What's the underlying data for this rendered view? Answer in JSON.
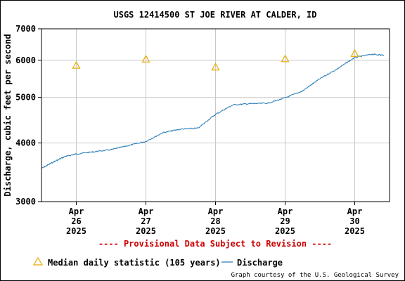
{
  "chart_data": {
    "type": "line",
    "title": "USGS 12414500 ST JOE RIVER AT CALDER, ID",
    "ylabel": "Discharge, cubic feet per second",
    "xlabel": "",
    "y_scale": "log",
    "ylim": [
      3000,
      7000
    ],
    "y_ticks": [
      3000,
      4000,
      5000,
      6000,
      7000
    ],
    "y_tick_labels": [
      "3000",
      "4000",
      "5000",
      "6000",
      "7000"
    ],
    "xlim": [
      "2025-04-25 12:00",
      "2025-04-30 12:00"
    ],
    "x_ticks": [
      {
        "date": "2025-04-26 00:00",
        "label": [
          "Apr",
          "26",
          "2025"
        ]
      },
      {
        "date": "2025-04-27 00:00",
        "label": [
          "Apr",
          "27",
          "2025"
        ]
      },
      {
        "date": "2025-04-28 00:00",
        "label": [
          "Apr",
          "28",
          "2025"
        ]
      },
      {
        "date": "2025-04-29 00:00",
        "label": [
          "Apr",
          "29",
          "2025"
        ]
      },
      {
        "date": "2025-04-30 00:00",
        "label": [
          "Apr",
          "30",
          "2025"
        ]
      }
    ],
    "grid": true,
    "series": [
      {
        "name": "Discharge",
        "color": "#1f77b4",
        "style": "line",
        "points": [
          [
            "2025-04-25 12:00",
            3530
          ],
          [
            "2025-04-25 16:00",
            3640
          ],
          [
            "2025-04-25 20:00",
            3740
          ],
          [
            "2025-04-26 00:00",
            3790
          ],
          [
            "2025-04-26 06:00",
            3830
          ],
          [
            "2025-04-26 12:00",
            3870
          ],
          [
            "2025-04-26 18:00",
            3950
          ],
          [
            "2025-04-27 00:00",
            4030
          ],
          [
            "2025-04-27 06:00",
            4210
          ],
          [
            "2025-04-27 12:00",
            4280
          ],
          [
            "2025-04-27 18:00",
            4300
          ],
          [
            "2025-04-28 00:00",
            4600
          ],
          [
            "2025-04-28 06:00",
            4820
          ],
          [
            "2025-04-28 12:00",
            4850
          ],
          [
            "2025-04-28 18:00",
            4860
          ],
          [
            "2025-04-29 00:00",
            4990
          ],
          [
            "2025-04-29 06:00",
            5160
          ],
          [
            "2025-04-29 12:00",
            5480
          ],
          [
            "2025-04-29 18:00",
            5750
          ],
          [
            "2025-04-30 00:00",
            6080
          ],
          [
            "2025-04-30 06:00",
            6180
          ],
          [
            "2025-04-30 10:00",
            6150
          ]
        ]
      },
      {
        "name": "Median daily statistic (105 years)",
        "color": "#e6a800",
        "style": "triangle",
        "points": [
          [
            "2025-04-26 00:00",
            5850
          ],
          [
            "2025-04-27 00:00",
            6030
          ],
          [
            "2025-04-28 00:00",
            5800
          ],
          [
            "2025-04-29 00:00",
            6040
          ],
          [
            "2025-04-30 00:00",
            6200
          ]
        ]
      }
    ]
  },
  "legend": {
    "median_label": "Median daily statistic (105 years)",
    "discharge_label": "Discharge"
  },
  "footer": {
    "provisional": "---- Provisional Data Subject to Revision ----",
    "credit": "Graph courtesy of the U.S. Geological Survey",
    "provisional_color": "#cc0000"
  }
}
